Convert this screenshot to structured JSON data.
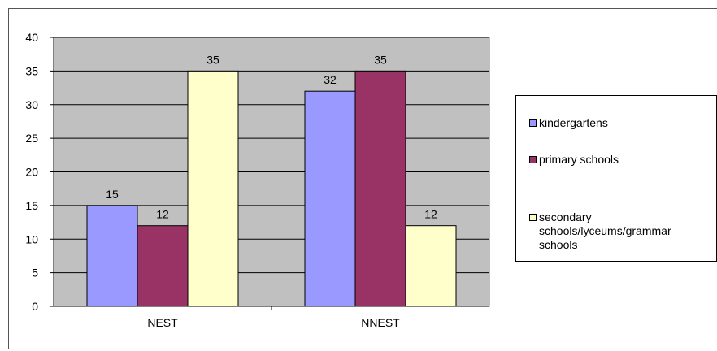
{
  "chart_data": {
    "type": "bar",
    "categories": [
      "NEST",
      "NNEST"
    ],
    "series": [
      {
        "name": "kindergartens",
        "values": [
          15,
          32
        ],
        "color": "#9999ff"
      },
      {
        "name": "primary schools",
        "values": [
          12,
          35
        ],
        "color": "#993366"
      },
      {
        "name": "secondary schools/lyceums/grammar schools",
        "values": [
          35,
          12
        ],
        "color": "#ffffcc"
      }
    ],
    "ylim": [
      0,
      40
    ],
    "yticks": [
      0,
      5,
      10,
      15,
      20,
      25,
      30,
      35,
      40
    ],
    "title": "",
    "xlabel": "",
    "ylabel": "",
    "grid": true,
    "plot_background": "#c0c0c0",
    "legend_position": "right"
  }
}
